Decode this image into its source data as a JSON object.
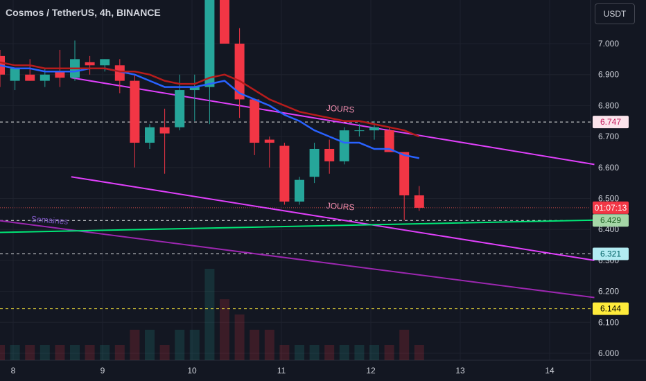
{
  "header": {
    "title": "Cosmos / TetherUS, 4h, BINANCE",
    "currency": "USDT"
  },
  "chart_data": {
    "type": "candlestick",
    "title": "Cosmos / TetherUS, 4h, BINANCE",
    "y_axis": {
      "ticks": [
        "7.000",
        "6.900",
        "6.800",
        "6.700",
        "6.600",
        "6.500",
        "6.400",
        "6.300",
        "6.200",
        "6.100",
        "6.000"
      ],
      "range": [
        5.98,
        7.14
      ],
      "position": "right"
    },
    "x_axis": {
      "ticks": [
        "8",
        "9",
        "10",
        "11",
        "12",
        "13",
        "14"
      ]
    },
    "candles": [
      {
        "o": 6.96,
        "h": 6.98,
        "l": 6.86,
        "c": 6.9
      },
      {
        "o": 6.88,
        "h": 6.92,
        "l": 6.85,
        "c": 6.92
      },
      {
        "o": 6.9,
        "h": 6.95,
        "l": 6.88,
        "c": 6.88
      },
      {
        "o": 6.88,
        "h": 6.92,
        "l": 6.86,
        "c": 6.9
      },
      {
        "o": 6.91,
        "h": 6.98,
        "l": 6.86,
        "c": 6.89
      },
      {
        "o": 6.89,
        "h": 7.01,
        "l": 6.88,
        "c": 6.95
      },
      {
        "o": 6.94,
        "h": 6.96,
        "l": 6.9,
        "c": 6.93
      },
      {
        "o": 6.93,
        "h": 6.95,
        "l": 6.91,
        "c": 6.95
      },
      {
        "o": 6.93,
        "h": 6.95,
        "l": 6.84,
        "c": 6.88
      },
      {
        "o": 6.88,
        "h": 6.9,
        "l": 6.6,
        "c": 6.68
      },
      {
        "o": 6.68,
        "h": 6.74,
        "l": 6.66,
        "c": 6.73
      },
      {
        "o": 6.73,
        "h": 6.79,
        "l": 6.58,
        "c": 6.71
      },
      {
        "o": 6.73,
        "h": 6.9,
        "l": 6.72,
        "c": 6.85
      },
      {
        "o": 6.85,
        "h": 6.9,
        "l": 6.75,
        "c": 6.86
      },
      {
        "o": 6.86,
        "h": 7.2,
        "l": 6.74,
        "c": 7.2
      },
      {
        "o": 7.2,
        "h": 7.22,
        "l": 7.0,
        "c": 7.0
      },
      {
        "o": 7.0,
        "h": 7.05,
        "l": 6.76,
        "c": 6.82
      },
      {
        "o": 6.82,
        "h": 6.82,
        "l": 6.64,
        "c": 6.68
      },
      {
        "o": 6.69,
        "h": 6.7,
        "l": 6.6,
        "c": 6.68
      },
      {
        "o": 6.67,
        "h": 6.68,
        "l": 6.48,
        "c": 6.49
      },
      {
        "o": 6.49,
        "h": 6.57,
        "l": 6.48,
        "c": 6.56
      },
      {
        "o": 6.57,
        "h": 6.68,
        "l": 6.55,
        "c": 6.66
      },
      {
        "o": 6.66,
        "h": 6.69,
        "l": 6.58,
        "c": 6.62
      },
      {
        "o": 6.62,
        "h": 6.73,
        "l": 6.61,
        "c": 6.72
      },
      {
        "o": 6.72,
        "h": 6.74,
        "l": 6.7,
        "c": 6.72
      },
      {
        "o": 6.72,
        "h": 6.75,
        "l": 6.69,
        "c": 6.73
      },
      {
        "o": 6.72,
        "h": 6.73,
        "l": 6.65,
        "c": 6.65
      },
      {
        "o": 6.65,
        "h": 6.65,
        "l": 6.43,
        "c": 6.51
      },
      {
        "o": 6.51,
        "h": 6.54,
        "l": 6.46,
        "c": 6.47
      }
    ],
    "moving_averages": [
      {
        "color": "#2962ff",
        "values": [
          6.93,
          6.92,
          6.92,
          6.91,
          6.91,
          6.91,
          6.92,
          6.92,
          6.91,
          6.9,
          6.88,
          6.86,
          6.86,
          6.86,
          6.87,
          6.88,
          6.84,
          6.82,
          6.8,
          6.77,
          6.75,
          6.72,
          6.7,
          6.68,
          6.68,
          6.66,
          6.66,
          6.64,
          6.63
        ]
      },
      {
        "color": "#b71c1c",
        "values": [
          6.94,
          6.93,
          6.93,
          6.92,
          6.92,
          6.92,
          6.92,
          6.92,
          6.91,
          6.91,
          6.9,
          6.88,
          6.87,
          6.87,
          6.89,
          6.9,
          6.88,
          6.85,
          6.82,
          6.8,
          6.78,
          6.77,
          6.76,
          6.75,
          6.75,
          6.74,
          6.73,
          6.72,
          6.7
        ]
      }
    ],
    "trendlines": [
      {
        "color": "#e040fb",
        "label": "JOURS",
        "p1": [
          8.65,
          6.89
        ],
        "p2": [
          14.5,
          6.61
        ]
      },
      {
        "color": "#e040fb",
        "label": "JOURS",
        "p1": [
          8.65,
          6.57
        ],
        "p2": [
          14.5,
          6.3
        ]
      },
      {
        "color": "#9c27b0",
        "label": "Semaines",
        "p1": [
          7.8,
          6.43
        ],
        "p2": [
          14.5,
          6.18
        ]
      },
      {
        "color": "#00e676",
        "label": "",
        "p1": [
          7.8,
          6.39
        ],
        "p2": [
          14.5,
          6.43
        ]
      }
    ],
    "horizontal_lines": [
      {
        "value": 6.747,
        "color": "#ffffff",
        "style": "dashed"
      },
      {
        "value": 6.429,
        "color": "#ffffff",
        "style": "dashed"
      },
      {
        "value": 6.321,
        "color": "#ffffff",
        "style": "dashed"
      },
      {
        "value": 6.144,
        "color": "#ffeb3b",
        "style": "dashed"
      },
      {
        "value": 6.47,
        "color": "#ef5350",
        "style": "dotted"
      }
    ],
    "price_labels": [
      {
        "text": "6.747",
        "value": 6.747,
        "bg": "#fce4ec",
        "fg": "#c2185b"
      },
      {
        "text": "01:07:13",
        "value": 6.47,
        "bg": "#f23645",
        "fg": "#ffffff"
      },
      {
        "text": "6.429",
        "value": 6.429,
        "bg": "#a5d6a7",
        "fg": "#1b5e20"
      },
      {
        "text": "6.321",
        "value": 6.321,
        "bg": "#b2ebf2",
        "fg": "#006064"
      },
      {
        "text": "6.144",
        "value": 6.144,
        "bg": "#ffeb3b",
        "fg": "#000000"
      }
    ],
    "volumes": [
      1,
      1,
      1,
      1,
      1,
      1,
      1,
      1,
      1,
      2,
      2,
      1,
      2,
      2,
      6,
      4,
      3,
      2,
      2,
      1,
      1,
      1,
      1,
      1,
      1,
      1,
      1,
      2,
      1
    ],
    "colors": {
      "up": "#26a69a",
      "down": "#f23645",
      "background": "#131722",
      "grid": "#1e222d",
      "axis_text": "#d1d4dc"
    }
  }
}
